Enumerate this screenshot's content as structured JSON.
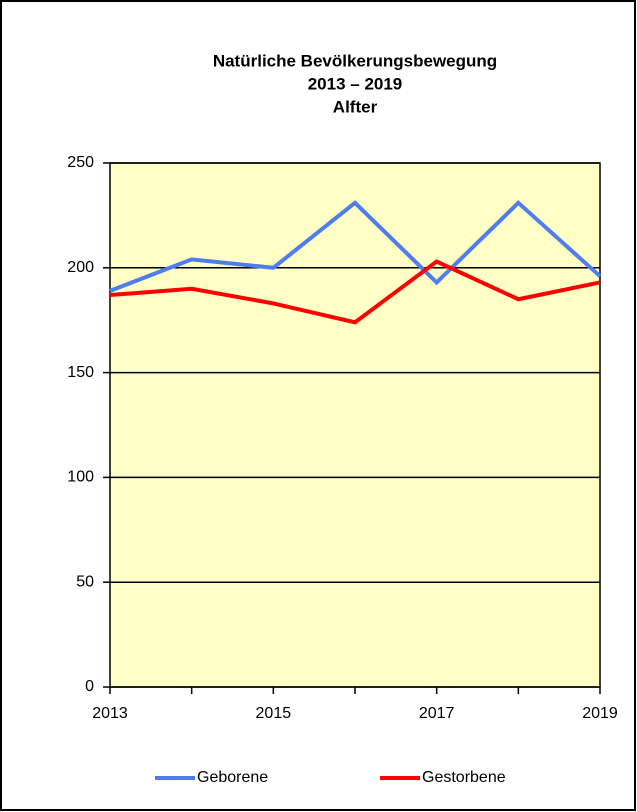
{
  "chart_data": {
    "type": "line",
    "title": [
      "Natürliche Bevölkerungsbewegung",
      "2013 – 2019",
      "Alfter"
    ],
    "x": [
      2013,
      2014,
      2015,
      2016,
      2017,
      2018,
      2019
    ],
    "series": [
      {
        "name": "Geborene",
        "color": "#4f7cf0",
        "values": [
          189,
          204,
          200,
          231,
          193,
          231,
          196
        ]
      },
      {
        "name": "Gestorbene",
        "color": "#ff0000",
        "values": [
          187,
          190,
          183,
          174,
          203,
          185,
          193
        ]
      }
    ],
    "xlim": [
      2013,
      2019
    ],
    "xticks": [
      2013,
      2015,
      2017,
      2019
    ],
    "ylim": [
      0,
      250
    ],
    "yticks": [
      0,
      50,
      100,
      150,
      200,
      250
    ],
    "grid": true,
    "legend": "bottom",
    "background": "#ffffc6"
  }
}
